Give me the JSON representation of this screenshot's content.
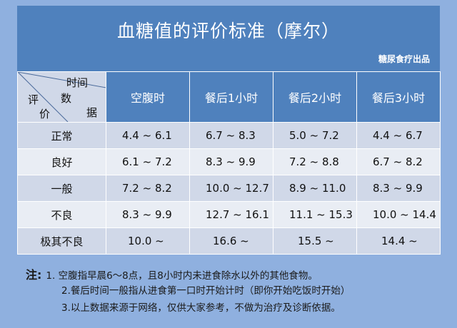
{
  "title": "血糖值的评价标准（摩尔）",
  "credit": "糖尿食疗出品",
  "corner": {
    "time": "时间",
    "data": [
      "数",
      "据"
    ],
    "eval": [
      "评",
      "价"
    ]
  },
  "columns": [
    "空腹时",
    "餐后1小时",
    "餐后2小时",
    "餐后3小时"
  ],
  "rows": [
    {
      "level": "正常",
      "values": [
        "4.4 ~ 6.1",
        "6.7 ~ 8.3",
        "5.0 ~ 7.2",
        "4.4 ~ 6.7"
      ]
    },
    {
      "level": "良好",
      "values": [
        "6.1 ~ 7.2",
        "8.3 ~ 9.9",
        "7.2 ~ 8.8",
        "6.7 ~ 8.2"
      ]
    },
    {
      "level": "一般",
      "values": [
        "7.2 ~ 8.2",
        "10.0 ~ 12.7",
        "8.9 ~ 11.0",
        "8.3 ~ 9.9"
      ]
    },
    {
      "level": "不良",
      "values": [
        "8.3 ~ 9.9",
        "12.7 ~ 16.1",
        "11.1 ~ 15.3",
        "10.0 ~ 14.4"
      ]
    },
    {
      "level": "极其不良",
      "values": [
        "10.0 ~",
        "16.6 ~",
        "15.5 ~",
        "14.4 ~"
      ]
    }
  ],
  "notes": {
    "label": "注:",
    "lines": [
      "1. 空腹指早晨6～8点，且8小时内未进食除水以外的其他食物。",
      "2.餐后时间一般指从进食第一口时开始计时（即你开始吃饭时开始）",
      "3.以上数据来源于网络，仅供大家参考，不做为治疗及诊断依据。"
    ]
  },
  "colors": {
    "background": "#8fb0df",
    "header_blue": "#4f81bd",
    "row_dark": "#d0d8e8",
    "row_light": "#e9edf4"
  }
}
